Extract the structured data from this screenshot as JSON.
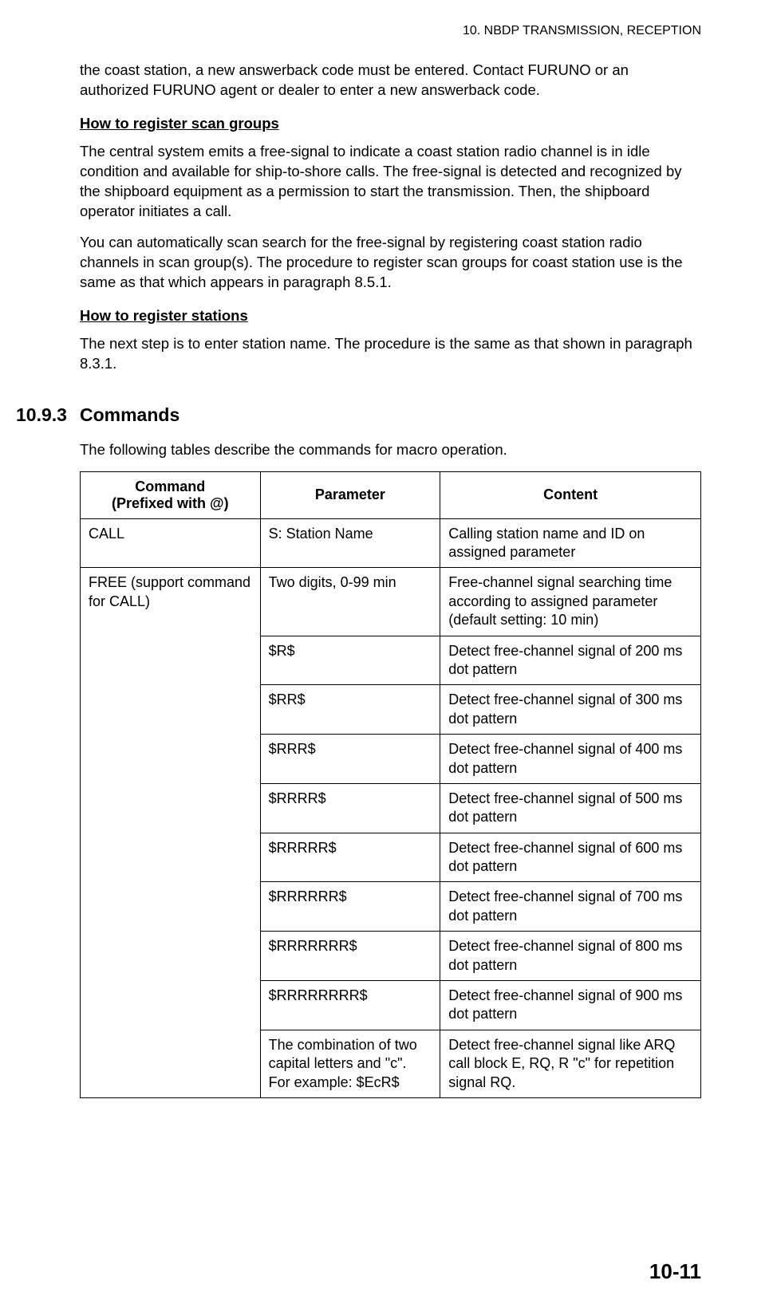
{
  "header": "10.  NBDP TRANSMISSION, RECEPTION",
  "intro_para": "the coast station, a new answerback code must be entered. Contact FURUNO or an authorized FURUNO agent or dealer to enter a new answerback code.",
  "scan_groups_heading": "How to register scan groups",
  "scan_groups_p1": "The central system emits a free-signal to indicate a coast station radio channel is in idle condition and available for ship-to-shore calls. The free-signal is detected and recognized by the shipboard equipment as a permission to start the transmission. Then, the shipboard operator initiates a call.",
  "scan_groups_p2": "You can automatically scan search for the free-signal by registering coast station radio channels in scan group(s). The procedure to register scan groups for coast station use is the same as that which appears in paragraph 8.5.1.",
  "stations_heading": "How to register stations",
  "stations_p1": "The next step is to enter station name. The procedure is the same as that shown in paragraph 8.3.1.",
  "section_number": "10.9.3",
  "section_title": "Commands",
  "commands_intro": "The following tables describe the commands for macro operation.",
  "table": {
    "headers": {
      "col1_line1": "Command",
      "col1_line2": "(Prefixed with @)",
      "col2": "Parameter",
      "col3": "Content"
    },
    "rows": [
      {
        "cmd": "CALL",
        "param": "S: Station Name",
        "content": "Calling station name and ID on assigned parameter"
      },
      {
        "cmd": "FREE (support command for CALL)",
        "param": "Two digits, 0-99 min",
        "content": "Free-channel signal searching time according to assigned parameter (default setting: 10 min)"
      },
      {
        "param": "$R$",
        "content": "Detect free-channel signal of 200 ms dot pattern"
      },
      {
        "param": "$RR$",
        "content": "Detect free-channel signal of 300 ms dot pattern"
      },
      {
        "param": "$RRR$",
        "content": "Detect free-channel signal of 400 ms dot pattern"
      },
      {
        "param": "$RRRR$",
        "content": "Detect free-channel signal of 500 ms dot pattern"
      },
      {
        "param": "$RRRRR$",
        "content": "Detect free-channel signal of 600 ms dot pattern"
      },
      {
        "param": "$RRRRRR$",
        "content": "Detect free-channel signal of 700 ms dot pattern"
      },
      {
        "param": "$RRRRRRR$",
        "content": "Detect free-channel signal of 800 ms dot pattern"
      },
      {
        "param": "$RRRRRRRR$",
        "content": "Detect free-channel signal of 900 ms dot pattern"
      },
      {
        "param": "The combination of two capital letters and \"c\". For example: $EcR$",
        "content": "Detect free-channel signal like ARQ call block E, RQ, R \"c\" for repetition signal RQ."
      }
    ]
  },
  "page_number": "10-11"
}
